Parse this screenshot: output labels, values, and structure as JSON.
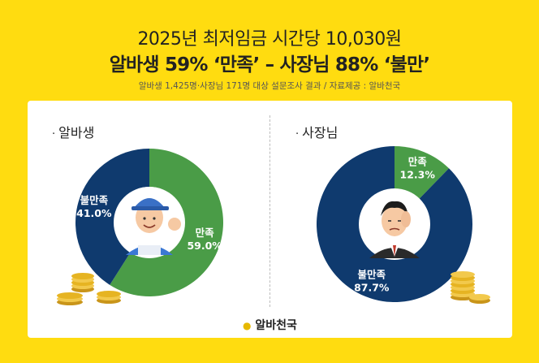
{
  "header": {
    "title": "2025년 최저임금 시간당 10,030원",
    "headline": "알바생 59% ‘만족’ – 사장님 88% ‘불만’",
    "source": "알바생 1,425명·사장님 171명 대상 설문조사 결과 / 자료제공 : 알바천국"
  },
  "colors": {
    "satisfied": "#4a9c47",
    "dissatisfied": "#0f3a6e",
    "background": "#ffdc10"
  },
  "chart_data": [
    {
      "type": "pie",
      "title": "알바생",
      "categories": [
        "만족",
        "불만족"
      ],
      "values": [
        59.0,
        41.0
      ],
      "value_labels": [
        "59.0%",
        "41.0%"
      ]
    },
    {
      "type": "pie",
      "title": "사장님",
      "categories": [
        "만족",
        "불만족"
      ],
      "values": [
        12.3,
        87.7
      ],
      "value_labels": [
        "12.3%",
        "87.7%"
      ]
    }
  ],
  "footer": {
    "brand": "알바천국"
  }
}
